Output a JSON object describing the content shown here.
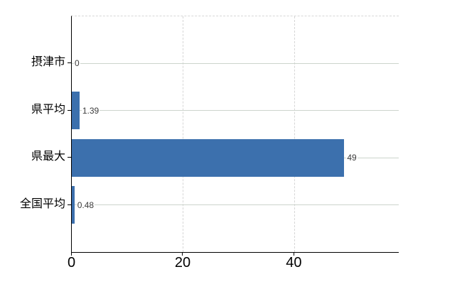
{
  "chart_data": {
    "type": "bar",
    "orientation": "horizontal",
    "categories": [
      "摂津市",
      "県平均",
      "県最大",
      "全国平均"
    ],
    "values": [
      0,
      1.39,
      49,
      0.48
    ],
    "value_labels": [
      "0",
      "1.39",
      "49",
      "0.48"
    ],
    "x_ticks": [
      0,
      20,
      40
    ],
    "x_tick_labels": [
      "0",
      "20",
      "40"
    ],
    "xlim": [
      0,
      58.8
    ],
    "grid": true,
    "legend_visible": false,
    "colors": {
      "bar": "#3c70ad",
      "axis": "#000000",
      "gridline_horizontal": "#ccd4cc",
      "gridline_vertical": "#d6d6d6",
      "plot_top_border": "#d8d8d8",
      "value_label": "#3c3c3c",
      "category_label": "#000000",
      "background": "#ffffff"
    }
  }
}
